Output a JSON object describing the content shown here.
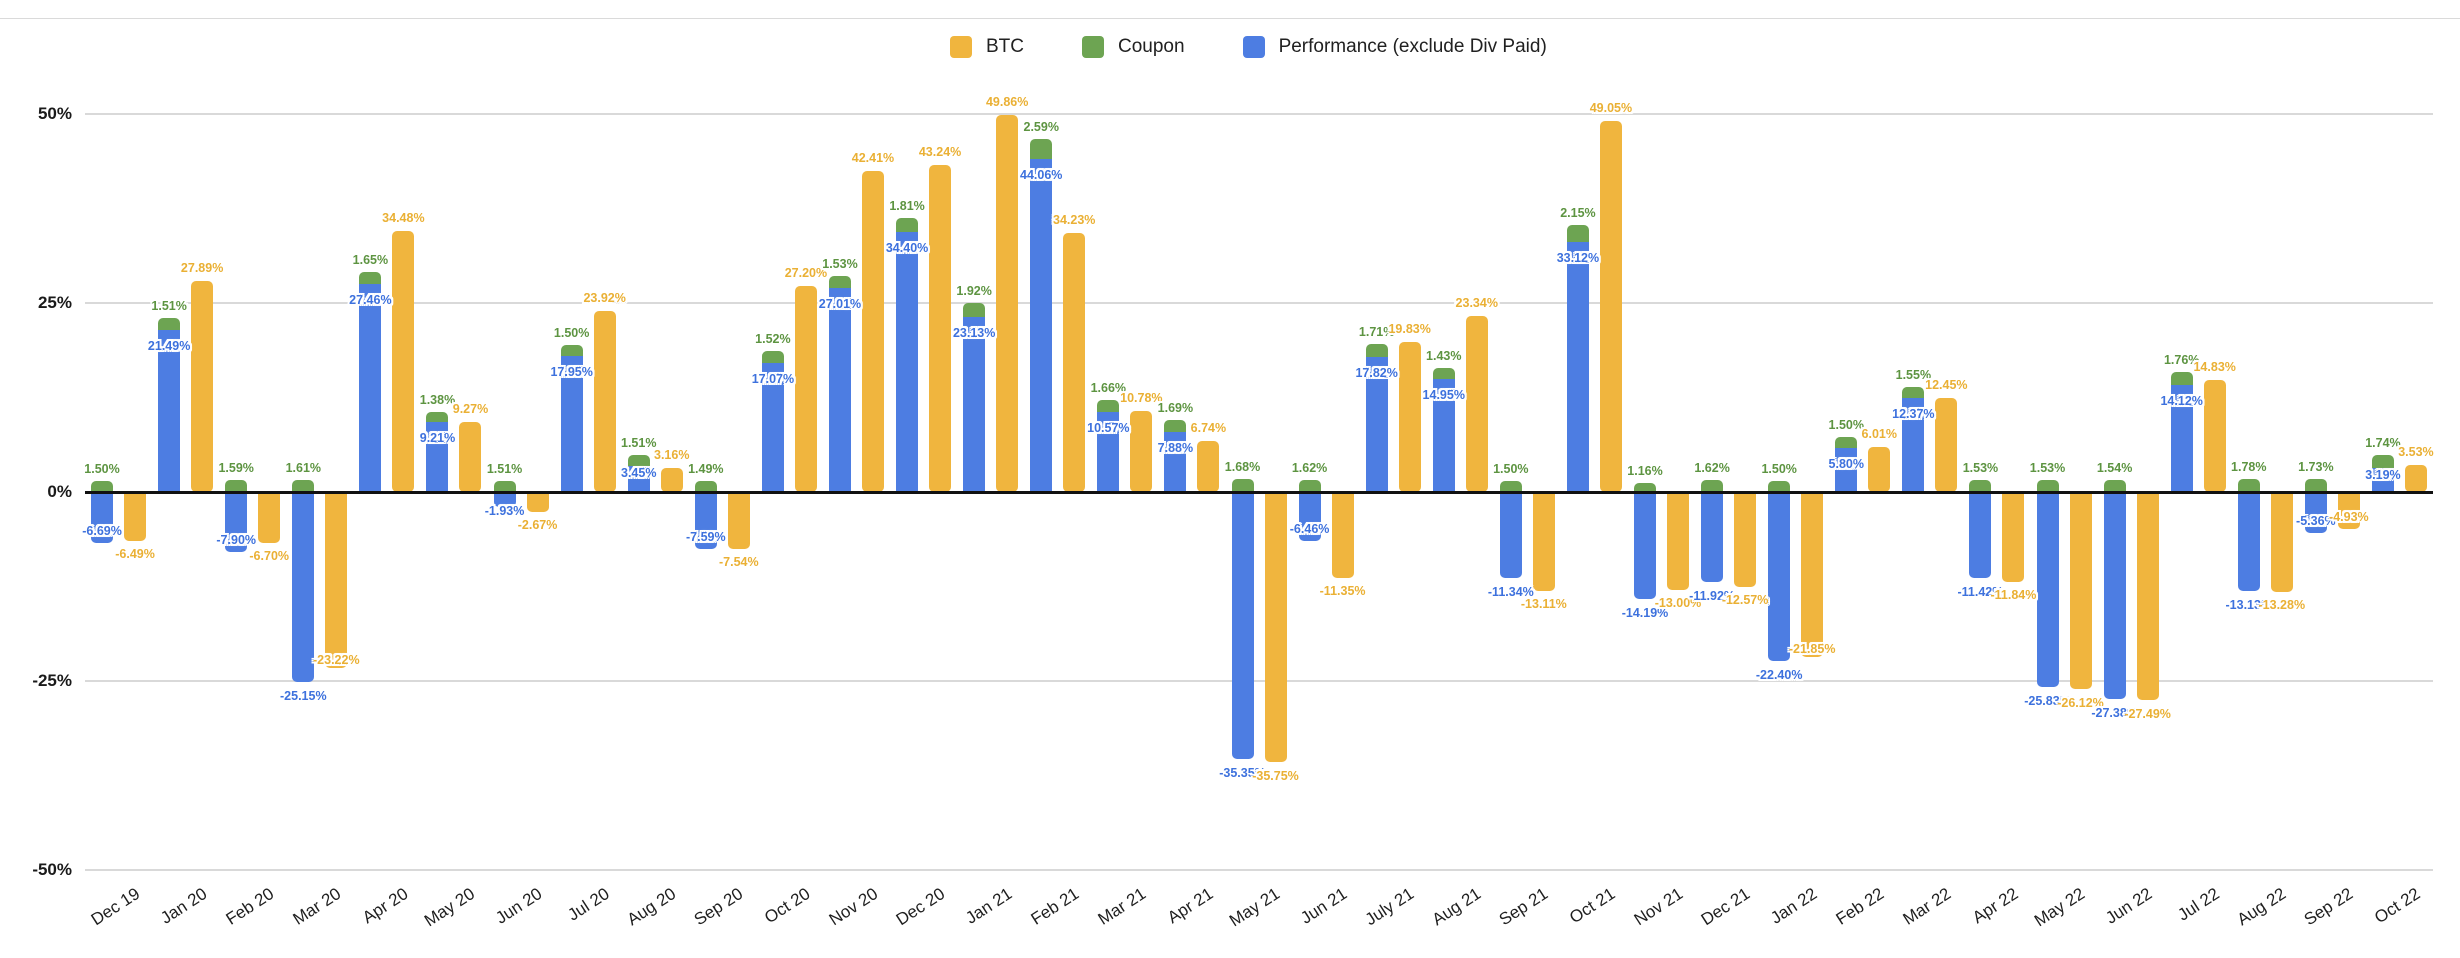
{
  "legend": {
    "items": [
      {
        "id": "btc",
        "label": "BTC",
        "color": "#F0B53E"
      },
      {
        "id": "coupon",
        "label": "Coupon",
        "color": "#6DA452"
      },
      {
        "id": "performance",
        "label": "Performance (exclude Div Paid)",
        "color": "#4D7DE2"
      }
    ]
  },
  "y_axis": {
    "tick_labels": [
      "50%",
      "25%",
      "0%",
      "-25%",
      "-50%"
    ],
    "tick_values": [
      50,
      25,
      0,
      -25,
      -50
    ]
  },
  "chart_data": {
    "type": "bar",
    "title": "",
    "xlabel": "",
    "ylabel": "",
    "ylim": [
      -50,
      50
    ],
    "grid": true,
    "legend_position": "top",
    "value_label_format": "0.00%",
    "structure": "Coupon stacked on top of Performance as one column; BTC as separate column in each group",
    "categories": [
      "Dec 19",
      "Jan 20",
      "Feb 20",
      "Mar 20",
      "Apr 20",
      "May 20",
      "Jun 20",
      "Jul 20",
      "Aug 20",
      "Sep 20",
      "Oct 20",
      "Nov 20",
      "Dec 20",
      "Jan 21",
      "Feb 21",
      "Mar 21",
      "Apr 21",
      "May 21",
      "Jun 21",
      "July 21",
      "Aug 21",
      "Sep 21",
      "Oct 21",
      "Nov 21",
      "Dec 21",
      "Jan 22",
      "Feb 22",
      "Mar 22",
      "Apr 22",
      "May 22",
      "Jun 22",
      "Jul 22",
      "Aug 22",
      "Sep 22",
      "Oct 22"
    ],
    "series": [
      {
        "name": "BTC",
        "color": "#F0B53E",
        "values": [
          -6.49,
          27.89,
          -6.7,
          -23.22,
          34.48,
          9.27,
          -2.67,
          23.92,
          3.16,
          -7.54,
          27.2,
          42.41,
          43.24,
          49.86,
          34.23,
          10.78,
          6.74,
          -35.75,
          -11.35,
          19.83,
          23.34,
          -13.11,
          49.05,
          -13.0,
          -12.57,
          -21.85,
          6.01,
          12.45,
          -11.84,
          -26.12,
          -27.49,
          14.83,
          -13.28,
          -4.93,
          3.53
        ]
      },
      {
        "name": "Coupon",
        "color": "#6DA452",
        "values": [
          1.5,
          1.51,
          1.59,
          1.61,
          1.65,
          1.38,
          1.51,
          1.5,
          1.51,
          1.49,
          1.52,
          1.53,
          1.81,
          1.92,
          2.59,
          1.66,
          1.69,
          1.68,
          1.62,
          1.71,
          1.43,
          1.5,
          2.15,
          1.16,
          1.62,
          1.5,
          1.5,
          1.55,
          1.53,
          1.53,
          1.54,
          1.76,
          1.78,
          1.73,
          1.74
        ]
      },
      {
        "name": "Performance (exclude Div Paid)",
        "color": "#4D7DE2",
        "values": [
          -6.69,
          21.49,
          -7.9,
          -25.15,
          27.46,
          9.21,
          -1.93,
          17.95,
          3.45,
          -7.59,
          17.07,
          27.01,
          34.4,
          23.13,
          44.06,
          10.57,
          7.88,
          -35.35,
          -6.46,
          17.82,
          14.95,
          -11.34,
          33.12,
          -14.19,
          -11.92,
          -22.4,
          5.8,
          12.37,
          -11.42,
          -25.83,
          -27.38,
          14.12,
          -13.13,
          -5.36,
          3.19
        ]
      }
    ]
  }
}
